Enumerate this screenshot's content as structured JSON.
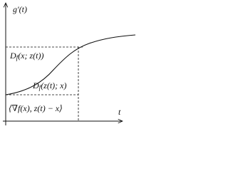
{
  "axes": {
    "y_label": "g′(t)",
    "x_label": "t"
  },
  "labels": [
    {
      "main": "D",
      "sub": "f",
      "args": "(x; z(t))"
    },
    {
      "main": "D",
      "sub": "f",
      "args": "(z(t); x)"
    },
    {
      "main": "⟨∇f(x), z(t) − x⟩"
    }
  ]
}
